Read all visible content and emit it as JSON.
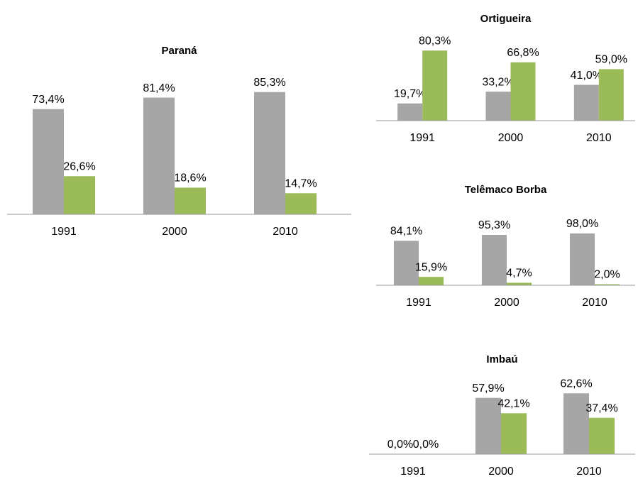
{
  "chart_data": [
    {
      "type": "bar",
      "title": "Paraná",
      "categories": [
        "1991",
        "2000",
        "2010"
      ],
      "series": [
        {
          "color": "#a6a6a6",
          "values": [
            73.4,
            81.4,
            85.3
          ],
          "value_labels": [
            "73,4%",
            "81,4%",
            "85,3%"
          ]
        },
        {
          "color": "#9bbb59",
          "values": [
            26.6,
            18.6,
            14.7
          ],
          "value_labels": [
            "26,6%",
            "18,6%",
            "14,7%"
          ]
        }
      ]
    },
    {
      "type": "bar",
      "title": "Ortigueira",
      "categories": [
        "1991",
        "2000",
        "2010"
      ],
      "series": [
        {
          "color": "#a6a6a6",
          "values": [
            19.7,
            33.2,
            41.0
          ],
          "value_labels": [
            "19,7%",
            "33,2%",
            "41,0%"
          ]
        },
        {
          "color": "#9bbb59",
          "values": [
            80.3,
            66.8,
            59.0
          ],
          "value_labels": [
            "80,3%",
            "66,8%",
            "59,0%"
          ]
        }
      ]
    },
    {
      "type": "bar",
      "title": "Telêmaco Borba",
      "categories": [
        "1991",
        "2000",
        "2010"
      ],
      "series": [
        {
          "color": "#a6a6a6",
          "values": [
            84.1,
            95.3,
            98.0
          ],
          "value_labels": [
            "84,1%",
            "95,3%",
            "98,0%"
          ]
        },
        {
          "color": "#9bbb59",
          "values": [
            15.9,
            4.7,
            2.0
          ],
          "value_labels": [
            "15,9%",
            "4,7%",
            "2,0%"
          ]
        }
      ]
    },
    {
      "type": "bar",
      "title": "Imbaú",
      "categories": [
        "1991",
        "2000",
        "2010"
      ],
      "series": [
        {
          "color": "#a6a6a6",
          "values": [
            0.0,
            57.9,
            62.6
          ],
          "value_labels": [
            "0,0%",
            "57,9%",
            "62,6%"
          ]
        },
        {
          "color": "#9bbb59",
          "values": [
            0.0,
            42.1,
            37.4
          ],
          "value_labels": [
            "0,0%",
            "42,1%",
            "37,4%"
          ]
        }
      ]
    }
  ]
}
